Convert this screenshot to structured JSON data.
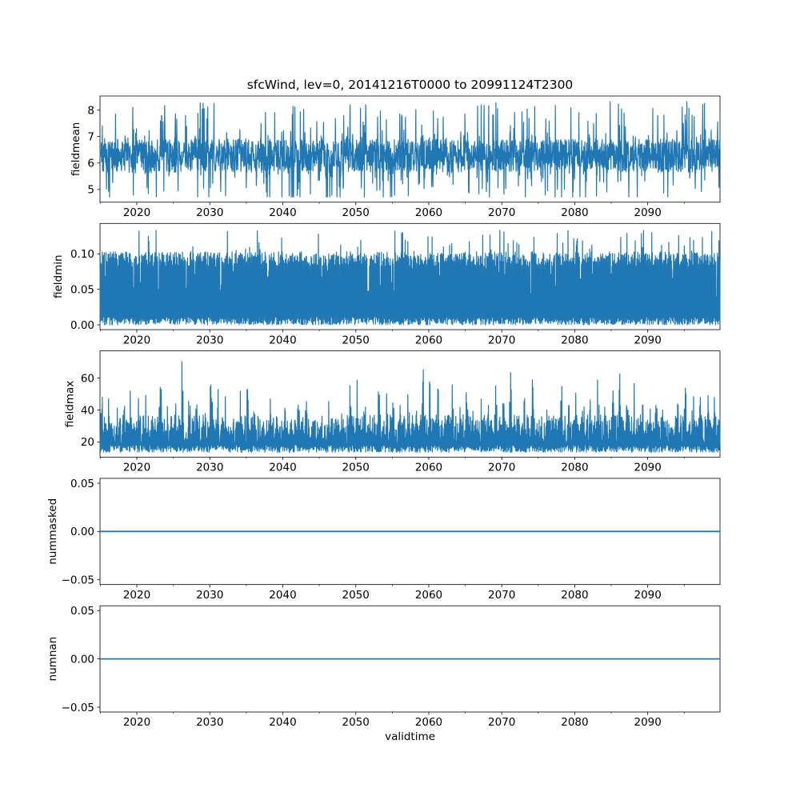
{
  "figure": {
    "title": "sfcWind, lev=0, 20141216T0000 to 20991124T2300",
    "xlabel": "validtime",
    "background": "#ffffff",
    "line_color": "#1f77b4",
    "axis_color": "#000000",
    "text_color": "#000000"
  },
  "xaxis": {
    "label": "validtime",
    "lim": [
      2014.958,
      2099.899
    ],
    "major_ticks": [
      2020,
      2030,
      2040,
      2050,
      2060,
      2070,
      2080,
      2090
    ],
    "tick_labels": [
      "2020",
      "2030",
      "2040",
      "2050",
      "2060",
      "2070",
      "2080",
      "2090"
    ],
    "minor_ticks": [
      2015,
      2025,
      2035,
      2045,
      2055,
      2065,
      2075,
      2085,
      2095
    ]
  },
  "chart_data": [
    {
      "type": "line",
      "ylabel": "fieldmean",
      "ylim": [
        4.52,
        8.53
      ],
      "ytick_values": [
        5,
        6,
        7,
        8
      ],
      "ytick_labels": [
        "5",
        "6",
        "7",
        "8"
      ],
      "approx_min": 4.7,
      "approx_max": 8.35,
      "dense_band": [
        5.65,
        6.95
      ],
      "description": "high-frequency noisy wind field mean, dense band ~5.7-6.9 m/s with spikes up to ~8.3 and dips to ~4.7",
      "signal": {
        "kind": "band_spikes",
        "seed": 42,
        "n": 2400,
        "base": 6.28,
        "band": 0.62,
        "spike_prob": 0.07,
        "spike_up": 1.45,
        "spike_down": 1.15,
        "vmin": 4.72,
        "vmax": 8.35
      }
    },
    {
      "type": "line",
      "ylabel": "fieldmin",
      "ylim": [
        -0.0068,
        0.1428
      ],
      "ytick_values": [
        0.0,
        0.05,
        0.1
      ],
      "ytick_labels": [
        "0.00",
        "0.05",
        "0.10"
      ],
      "approx_min": 0.0,
      "approx_max": 0.134,
      "dense_band": [
        0.0,
        0.102
      ],
      "description": "field minimum oscillating between 0 and ~0.10 with occasional peaks to ~0.13; appears as solid fill from 0 to 0.10",
      "signal": {
        "kind": "fill",
        "seed": 7,
        "n": 2400,
        "low_top": 0.012,
        "top": 0.102,
        "peak_prob": 0.05,
        "peak_extra": 0.032,
        "mid_prob": 0.18,
        "mid_lo": 0.03,
        "mid_span": 0.05,
        "hi_lo": 0.082,
        "hi_span": 0.021,
        "vmin": 0,
        "vmax": 0.1345
      }
    },
    {
      "type": "line",
      "ylabel": "fieldmax",
      "ylim": [
        10.5,
        77.0
      ],
      "ytick_values": [
        20,
        40,
        60
      ],
      "ytick_labels": [
        "20",
        "40",
        "60"
      ],
      "approx_min": 13,
      "approx_max": 74,
      "dense_band": [
        13.5,
        37
      ],
      "description": "field maximum with dense base band ~14-37 and annual clusters of spikes reaching 40-74",
      "signal": {
        "kind": "seasonal",
        "seed": 13,
        "n": 2400,
        "cycles": 85,
        "amp_lo": 0.55,
        "base_lo": 13.5,
        "base_low_span": 5,
        "mid_lo": 18,
        "mid_span": 19,
        "cluster_prob": 0.6,
        "spike_base": 22,
        "spike_lo": 6,
        "spike_span": 46,
        "vmin": 12.5,
        "vmax": 74.5
      }
    },
    {
      "type": "line",
      "ylabel": "nummasked",
      "ylim": [
        -0.055,
        0.055
      ],
      "ytick_values": [
        -0.05,
        0.0,
        0.05
      ],
      "ytick_labels": [
        "−0.05",
        "0.00",
        "0.05"
      ],
      "approx_min": 0,
      "approx_max": 0,
      "description": "constant zero line (no masked values)",
      "signal": {
        "kind": "const",
        "value": 0
      }
    },
    {
      "type": "line",
      "ylabel": "numnan",
      "ylim": [
        -0.055,
        0.055
      ],
      "ytick_values": [
        -0.05,
        0.0,
        0.05
      ],
      "ytick_labels": [
        "−0.05",
        "0.00",
        "0.05"
      ],
      "approx_min": 0,
      "approx_max": 0,
      "description": "constant zero line (no NaN values)",
      "signal": {
        "kind": "const",
        "value": 0
      }
    }
  ]
}
